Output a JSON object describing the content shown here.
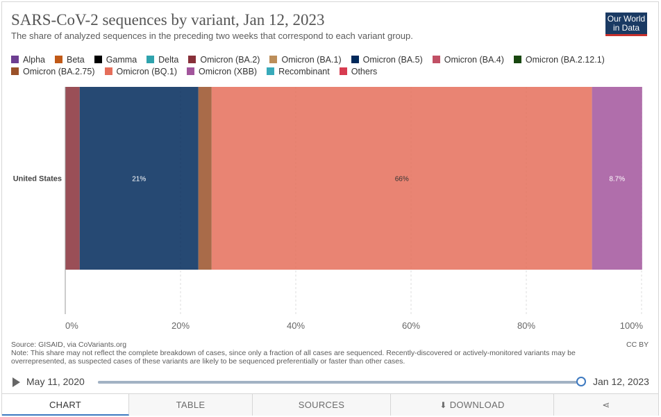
{
  "header": {
    "title": "SARS-CoV-2 sequences by variant, Jan 12, 2023",
    "subtitle": "The share of analyzed sequences in the preceding two weeks that correspond to each variant group.",
    "logo_line1": "Our World",
    "logo_line2": "in Data"
  },
  "colors": {
    "Alpha": "#6d3e91",
    "Beta": "#c05917",
    "Gamma": "#000000",
    "Delta": "#2fa3ad",
    "Omicron (BA.2)": "#883039",
    "Omicron (BA.1)": "#bc8e5a",
    "Omicron (BA.5)": "#00295b",
    "Omicron (BA.4)": "#c15065",
    "Omicron (BA.2.12.1)": "#18470f",
    "Omicron (BA.2.75)": "#9a5129",
    "Omicron (BQ.1)": "#e56e5a",
    "Omicron (XBB)": "#a2559c",
    "Recombinant": "#38aaba",
    "Others": "#d73c50"
  },
  "legend_rows": [
    [
      "Alpha",
      "Beta",
      "Gamma",
      "Delta",
      "Omicron (BA.2)",
      "Omicron (BA.1)",
      "Omicron (BA.5)",
      "Omicron (BA.4)",
      "Omicron (BA.2.12.1)"
    ],
    [
      "Omicron (BA.2.75)",
      "Omicron (BQ.1)",
      "Omicron (XBB)",
      "Recombinant",
      "Others"
    ]
  ],
  "chart_data": {
    "type": "bar",
    "orientation": "horizontal",
    "stacked": true,
    "title": "SARS-CoV-2 sequences by variant, Jan 12, 2023",
    "categories": [
      "United States"
    ],
    "xlim": [
      0,
      100
    ],
    "x_ticks": [
      0,
      20,
      40,
      60,
      80,
      100
    ],
    "x_tick_labels": [
      "0%",
      "20%",
      "40%",
      "60%",
      "80%",
      "100%"
    ],
    "grid": "vertical dashed",
    "series": [
      {
        "name": "Omicron (BA.2)",
        "values": [
          2.5
        ],
        "label": ""
      },
      {
        "name": "Omicron (BA.5)",
        "values": [
          20.6
        ],
        "label": "21%"
      },
      {
        "name": "Omicron (BA.2.75)",
        "values": [
          2.3
        ],
        "label": ""
      },
      {
        "name": "Omicron (BQ.1)",
        "values": [
          66.0
        ],
        "label": "66%"
      },
      {
        "name": "Omicron (XBB)",
        "values": [
          8.7
        ],
        "label": "8.7%"
      }
    ]
  },
  "footer": {
    "source": "Source: GISAID, via CoVariants.org",
    "note": "Note: This share may not reflect the complete breakdown of cases, since only a fraction of all cases are sequenced. Recently-discovered or actively-monitored variants may be overrepresented, as suspected cases of these variants are likely to be sequenced preferentially or faster than other cases.",
    "license": "CC BY"
  },
  "timeline": {
    "start_label": "May 11, 2020",
    "end_label": "Jan 12, 2023",
    "position": 1.0
  },
  "tabs": {
    "chart": "CHART",
    "table": "TABLE",
    "sources": "SOURCES",
    "download": "DOWNLOAD"
  }
}
